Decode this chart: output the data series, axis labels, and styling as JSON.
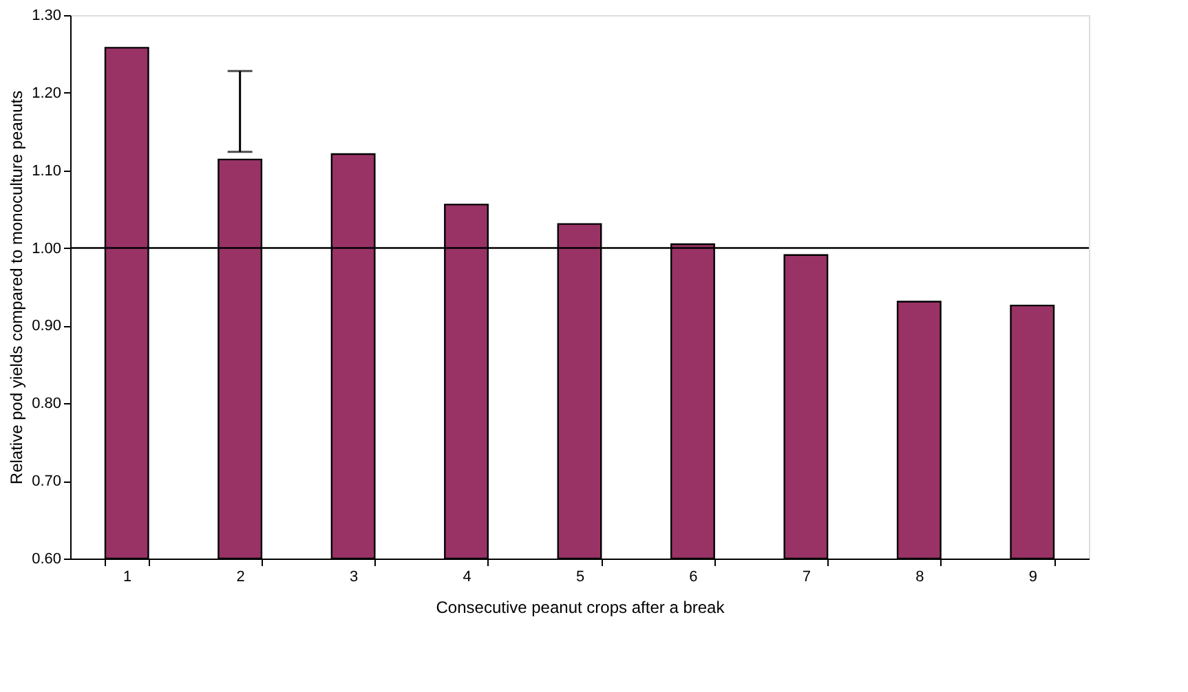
{
  "chart_data": {
    "type": "bar",
    "xlabel": "Consecutive peanut crops after a break",
    "ylabel": "Relative pod yields compared to monoculture peanuts",
    "categories": [
      "1",
      "2",
      "3",
      "4",
      "5",
      "6",
      "7",
      "8",
      "9"
    ],
    "values": [
      1.258,
      1.114,
      1.121,
      1.056,
      1.031,
      1.005,
      0.991,
      0.931,
      0.926
    ],
    "errors": [
      null,
      [
        1.124,
        1.228
      ],
      null,
      null,
      null,
      null,
      null,
      null,
      null
    ],
    "color": "#993366",
    "ylim": [
      0.6,
      1.3
    ],
    "yticks": [
      {
        "value": 0.6,
        "label": "0.60"
      },
      {
        "value": 0.7,
        "label": "0.70"
      },
      {
        "value": 0.8,
        "label": "0.80"
      },
      {
        "value": 0.9,
        "label": "0.90"
      },
      {
        "value": 1.0,
        "label": "1.00"
      },
      {
        "value": 1.1,
        "label": "1.10"
      },
      {
        "value": 1.2,
        "label": "1.20"
      },
      {
        "value": 1.3,
        "label": "1.30"
      }
    ],
    "ref_lines": [
      {
        "axis": "y",
        "value": 1.0,
        "color": "#000000"
      }
    ],
    "grid": false
  }
}
